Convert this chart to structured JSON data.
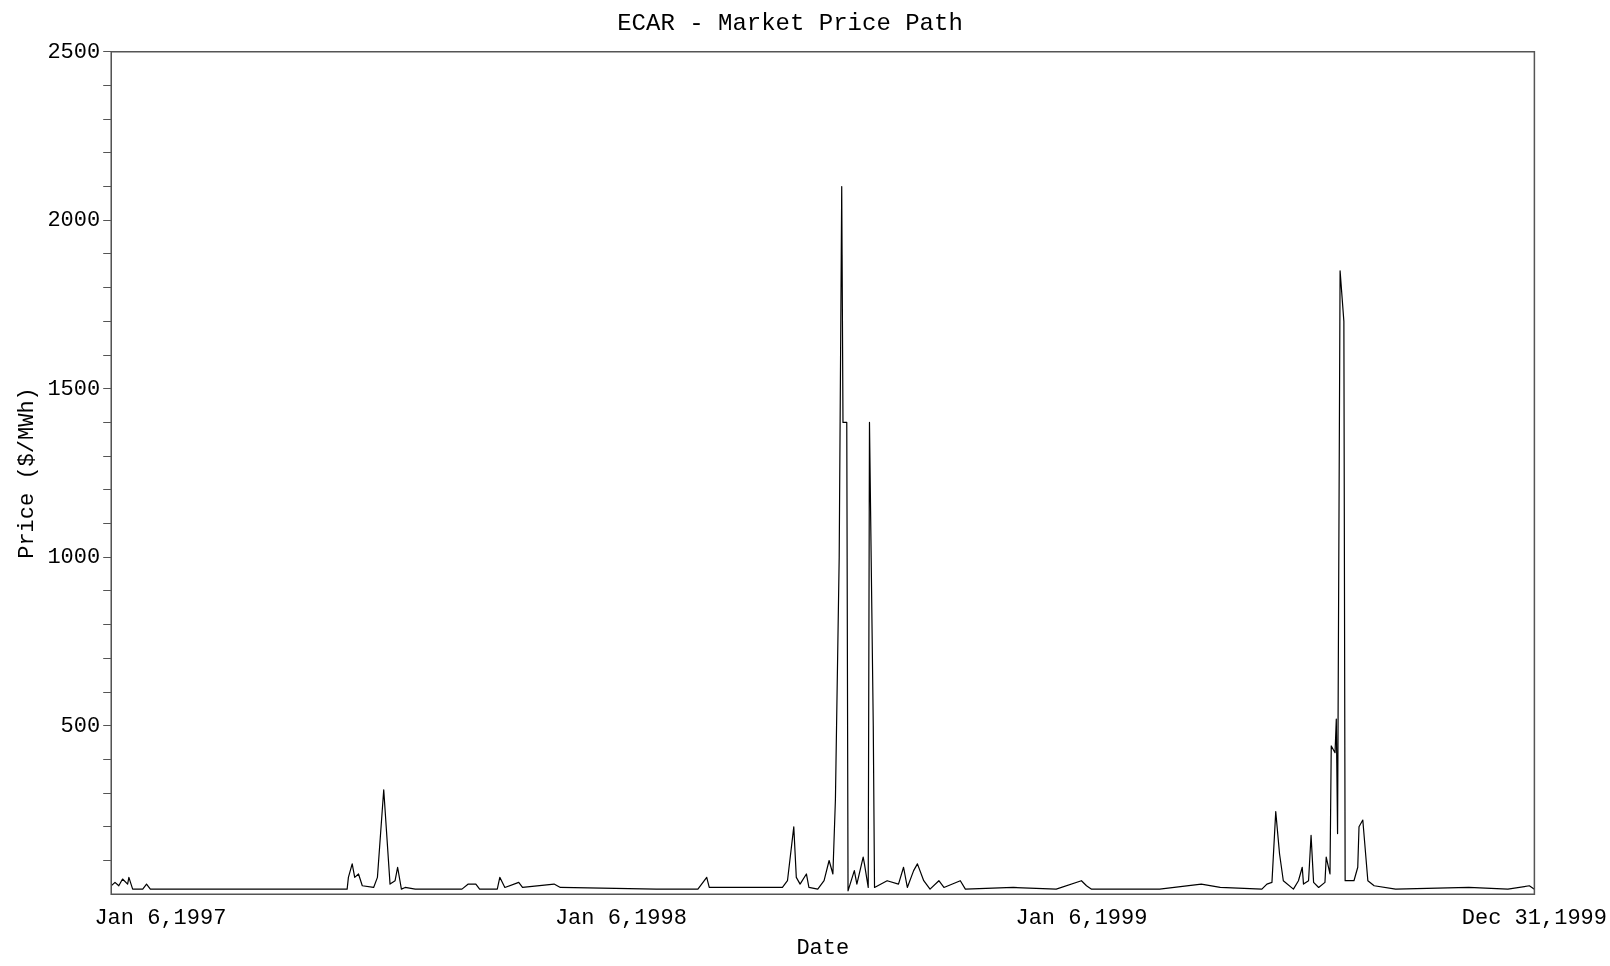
{
  "chart_data": {
    "type": "line",
    "title": "ECAR - Market Price Path",
    "xlabel": "Date",
    "ylabel": "Price ($/MWh)",
    "xlim": [
      "1996-11-28",
      "1999-12-31"
    ],
    "xticks": [
      {
        "value": "1997-01-06",
        "label": "Jan 6,1997"
      },
      {
        "value": "1998-01-06",
        "label": "Jan 6,1998"
      },
      {
        "value": "1999-01-06",
        "label": "Jan 6,1999"
      },
      {
        "value": "1999-12-31",
        "label": "Dec 31,1999"
      }
    ],
    "ylim": [
      0,
      2500
    ],
    "yticks": [
      {
        "value": 100,
        "label": null
      },
      {
        "value": 200,
        "label": null
      },
      {
        "value": 300,
        "label": null
      },
      {
        "value": 400,
        "label": null
      },
      500,
      {
        "value": 600,
        "label": null
      },
      {
        "value": 700,
        "label": null
      },
      {
        "value": 800,
        "label": null
      },
      {
        "value": 900,
        "label": null
      },
      1000,
      {
        "value": 1100,
        "label": null
      },
      {
        "value": 1200,
        "label": null
      },
      {
        "value": 1300,
        "label": null
      },
      {
        "value": 1400,
        "label": null
      },
      1500,
      {
        "value": 1600,
        "label": null
      },
      {
        "value": 1700,
        "label": null
      },
      {
        "value": 1800,
        "label": null
      },
      {
        "value": 1900,
        "label": null
      },
      2000,
      {
        "value": 2100,
        "label": null
      },
      {
        "value": 2200,
        "label": null
      },
      {
        "value": 2300,
        "label": null
      },
      {
        "value": 2400,
        "label": null
      },
      2500
    ],
    "grid": false,
    "legend": false,
    "marker": "none",
    "line_style": "solid",
    "series": [
      {
        "color": "#000000",
        "x": [
          "1996-11-28",
          "1996-12-01",
          "1996-12-04",
          "1996-12-07",
          "1996-12-11",
          "1996-12-12",
          "1996-12-15",
          "1996-12-23",
          "1996-12-26",
          "1996-12-29",
          "1997-04-17",
          "1997-06-03",
          "1997-06-04",
          "1997-06-07",
          "1997-06-09",
          "1997-06-12",
          "1997-06-15",
          "1997-06-24",
          "1997-06-27",
          "1997-07-02",
          "1997-07-07",
          "1997-07-11",
          "1997-07-13",
          "1997-07-16",
          "1997-07-19",
          "1997-07-27",
          "1997-09-02",
          "1997-09-07",
          "1997-09-13",
          "1997-09-16",
          "1997-09-30",
          "1997-10-02",
          "1997-10-06",
          "1997-10-17",
          "1997-10-20",
          "1997-11-14",
          "1997-11-19",
          "1998-02-03",
          "1998-03-08",
          "1998-03-15",
          "1998-03-17",
          "1998-04-10",
          "1998-05-14",
          "1998-05-18",
          "1998-05-23",
          "1998-05-25",
          "1998-05-28",
          "1998-06-02",
          "1998-06-04",
          "1998-06-11",
          "1998-06-16",
          "1998-06-20",
          "1998-06-23",
          "1998-06-25",
          "1998-06-28",
          "1998-06-30",
          "1998-07-01",
          "1998-07-04",
          "1998-07-05",
          "1998-07-10",
          "1998-07-12",
          "1998-07-17",
          "1998-07-18",
          "1998-07-21",
          "1998-07-22",
          "1998-07-25",
          "1998-07-26",
          "1998-08-05",
          "1998-08-14",
          "1998-08-18",
          "1998-08-21",
          "1998-08-26",
          "1998-08-29",
          "1998-09-03",
          "1998-09-08",
          "1998-09-15",
          "1998-09-19",
          "1998-10-02",
          "1998-10-06",
          "1998-11-13",
          "1998-12-17",
          "1999-01-06",
          "1999-01-10",
          "1999-01-14",
          "1999-03-09",
          "1999-04-11",
          "1999-04-26",
          "1999-05-29",
          "1999-06-02",
          "1999-06-06",
          "1999-06-09",
          "1999-06-12",
          "1999-06-15",
          "1999-06-23",
          "1999-06-27",
          "1999-06-30",
          "1999-07-01",
          "1999-07-05",
          "1999-07-07",
          "1999-07-09",
          "1999-07-13",
          "1999-07-18",
          "1999-07-19",
          "1999-07-22",
          "1999-07-23",
          "1999-07-26",
          "1999-07-27",
          "1999-07-28",
          "1999-07-30",
          "1999-08-02",
          "1999-08-03",
          "1999-08-10",
          "1999-08-13",
          "1999-08-14",
          "1999-08-17",
          "1999-08-21",
          "1999-08-26",
          "1999-09-12",
          "1999-11-09",
          "1999-12-10",
          "1999-12-27",
          "1999-12-31"
        ],
        "values": [
          25,
          35,
          25,
          45,
          30,
          50,
          15,
          15,
          30,
          15,
          15,
          15,
          50,
          90,
          50,
          60,
          25,
          20,
          50,
          310,
          30,
          40,
          80,
          15,
          20,
          15,
          15,
          30,
          30,
          15,
          15,
          50,
          20,
          35,
          20,
          30,
          20,
          15,
          15,
          50,
          20,
          20,
          20,
          40,
          200,
          50,
          30,
          60,
          20,
          15,
          40,
          100,
          60,
          280,
          1000,
          2100,
          1400,
          1400,
          10,
          70,
          30,
          110,
          90,
          20,
          1400,
          500,
          20,
          40,
          30,
          80,
          20,
          70,
          90,
          40,
          15,
          40,
          20,
          40,
          15,
          20,
          15,
          40,
          25,
          15,
          15,
          30,
          20,
          15,
          30,
          35,
          245,
          120,
          40,
          15,
          40,
          80,
          30,
          40,
          175,
          35,
          20,
          35,
          110,
          60,
          440,
          420,
          520,
          180,
          1850,
          1700,
          40,
          40,
          80,
          200,
          220,
          40,
          25,
          15,
          20,
          15,
          25,
          15
        ]
      }
    ]
  }
}
